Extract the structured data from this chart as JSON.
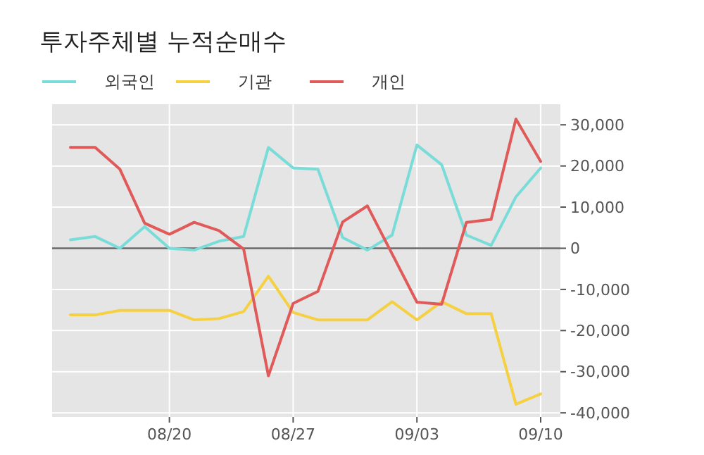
{
  "chart_data": {
    "type": "line",
    "title": "투자주체별 누적순매수",
    "categories": [
      null,
      null,
      null,
      null,
      "08/20",
      null,
      null,
      null,
      null,
      "08/27",
      null,
      null,
      null,
      null,
      "09/03",
      null,
      null,
      null,
      null,
      "09/10"
    ],
    "series": [
      {
        "name": "외국인",
        "color": "#7adcd8",
        "values": [
          2050,
          2850,
          0,
          5250,
          0,
          -450,
          1700,
          2850,
          24500,
          19500,
          19200,
          2600,
          -450,
          3200,
          25100,
          20300,
          3200,
          700,
          12500,
          19500
        ]
      },
      {
        "name": "기관",
        "color": "#f5d042",
        "values": [
          -16200,
          -16200,
          -15100,
          -15100,
          -15100,
          -17400,
          -17100,
          -15400,
          -6800,
          -15600,
          -17400,
          -17400,
          -17400,
          -13000,
          -17400,
          -13000,
          -15900,
          -15900,
          -37900,
          -35400
        ]
      },
      {
        "name": "개인",
        "color": "#e05a5a",
        "values": [
          24500,
          24500,
          19200,
          6100,
          3400,
          6300,
          4300,
          -200,
          -31000,
          -13400,
          -10500,
          6400,
          10300,
          -1400,
          -13100,
          -13600,
          6300,
          7000,
          31400,
          21100
        ]
      }
    ],
    "ylim": [
      -41000,
      35000
    ],
    "yticks": [
      {
        "value": 30000,
        "label": "30,000"
      },
      {
        "value": 20000,
        "label": "20,000"
      },
      {
        "value": 10000,
        "label": "10,000"
      },
      0,
      {
        "value": -10000,
        "label": "-10,000"
      },
      {
        "value": -20000,
        "label": "-20,000"
      },
      {
        "value": -30000,
        "label": "-30,000"
      },
      {
        "value": -40000,
        "label": "-40,000"
      }
    ],
    "ref_lines": [
      {
        "axis": "y",
        "value": 0,
        "color": "#666666"
      }
    ],
    "grid": true,
    "legend": "top left",
    "marker": "none",
    "line_style": "solid"
  }
}
